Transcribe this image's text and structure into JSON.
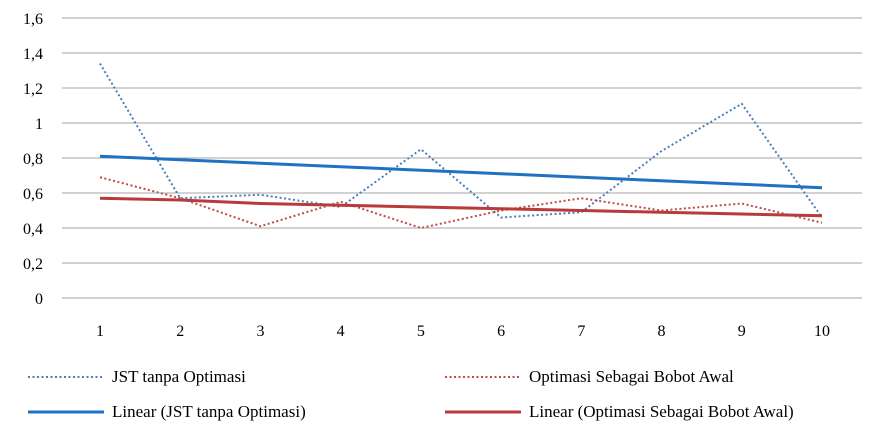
{
  "chart_data": {
    "type": "line",
    "title": "",
    "xlabel": "",
    "ylabel": "",
    "categories": [
      "1",
      "2",
      "3",
      "4",
      "5",
      "6",
      "7",
      "8",
      "9",
      "10"
    ],
    "ylim": [
      0,
      1.6
    ],
    "y_ticks": [
      "0",
      "0,2",
      "0,4",
      "0,6",
      "0,8",
      "1",
      "1,2",
      "1,4",
      "1,6"
    ],
    "grid": "horizontal",
    "legend_position": "bottom",
    "series": [
      {
        "name": "JST tanpa Optimasi",
        "style": "dotted",
        "color": "#4a7ebb",
        "values": [
          1.34,
          0.57,
          0.59,
          0.52,
          0.85,
          0.46,
          0.49,
          0.84,
          1.11,
          0.46
        ]
      },
      {
        "name": "Optimasi Sebagai Bobot Awal",
        "style": "dotted",
        "color": "#be4b48",
        "values": [
          0.69,
          0.57,
          0.41,
          0.55,
          0.4,
          0.5,
          0.57,
          0.5,
          0.54,
          0.43
        ]
      },
      {
        "name": "Linear (JST tanpa Optimasi)",
        "style": "solid",
        "color": "#1f72c2",
        "values": [
          0.81,
          0.79,
          0.77,
          0.75,
          0.73,
          0.71,
          0.69,
          0.67,
          0.65,
          0.63
        ]
      },
      {
        "name": "Linear (Optimasi Sebagai Bobot Awal)",
        "style": "solid",
        "color": "#b83b3b",
        "values": [
          0.57,
          0.56,
          0.54,
          0.53,
          0.52,
          0.51,
          0.5,
          0.49,
          0.48,
          0.47
        ]
      }
    ]
  }
}
